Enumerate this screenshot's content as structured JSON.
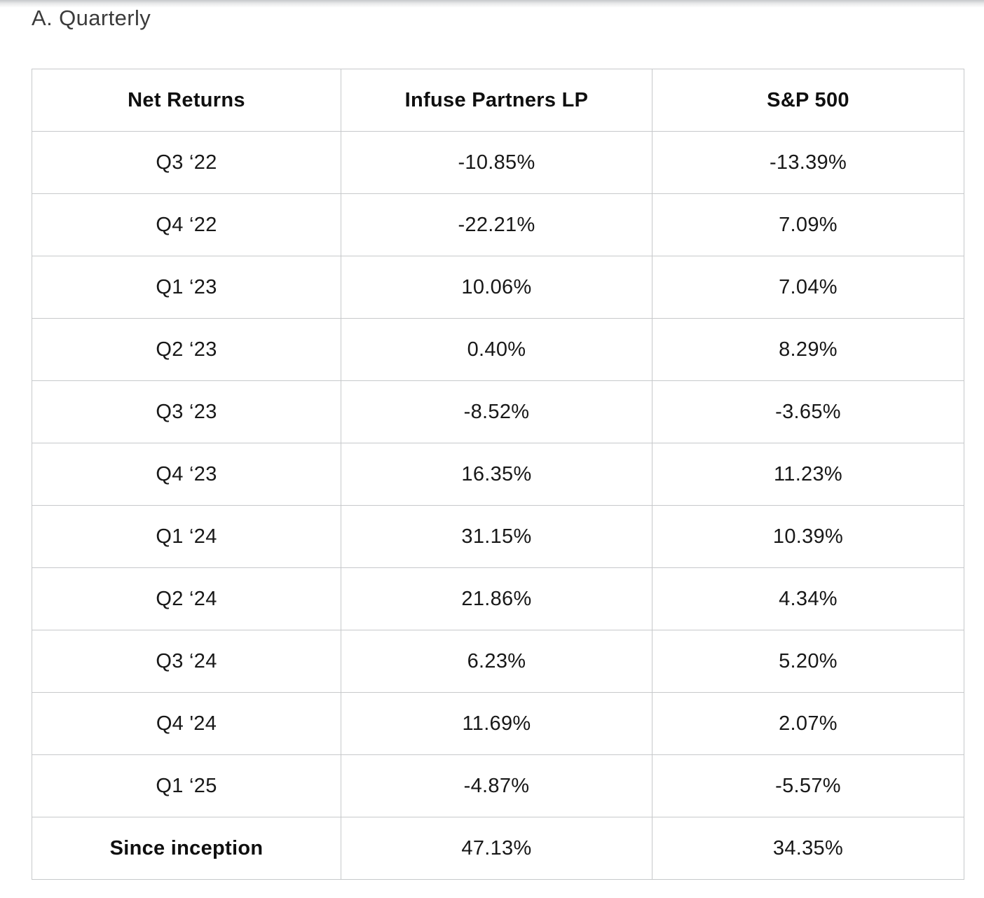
{
  "page": {
    "title": "A. Quarterly"
  },
  "table": {
    "columns": [
      "Net Returns",
      "Infuse Partners LP",
      "S&P 500"
    ],
    "rows": [
      {
        "label": "Q3 ‘22",
        "infuse": "-10.85%",
        "sp500": "-13.39%",
        "emphasis": false
      },
      {
        "label": "Q4 ‘22",
        "infuse": "-22.21%",
        "sp500": "7.09%",
        "emphasis": false
      },
      {
        "label": "Q1 ‘23",
        "infuse": "10.06%",
        "sp500": "7.04%",
        "emphasis": false
      },
      {
        "label": "Q2 ‘23",
        "infuse": "0.40%",
        "sp500": "8.29%",
        "emphasis": false
      },
      {
        "label": "Q3 ‘23",
        "infuse": "-8.52%",
        "sp500": "-3.65%",
        "emphasis": false
      },
      {
        "label": "Q4 ‘23",
        "infuse": "16.35%",
        "sp500": "11.23%",
        "emphasis": false
      },
      {
        "label": "Q1 ‘24",
        "infuse": "31.15%",
        "sp500": "10.39%",
        "emphasis": false
      },
      {
        "label": "Q2 ‘24",
        "infuse": "21.86%",
        "sp500": "4.34%",
        "emphasis": false
      },
      {
        "label": "Q3 ‘24",
        "infuse": "6.23%",
        "sp500": "5.20%",
        "emphasis": false
      },
      {
        "label": "Q4 '24",
        "infuse": "11.69%",
        "sp500": "2.07%",
        "emphasis": false
      },
      {
        "label": "Q1 ‘25",
        "infuse": "-4.87%",
        "sp500": "-5.57%",
        "emphasis": false
      },
      {
        "label": "Since inception",
        "infuse": "47.13%",
        "sp500": "34.35%",
        "emphasis": true
      }
    ]
  },
  "colors": {
    "border": "#c7c9cb",
    "text": "#181818",
    "title_text": "#3b3b3b",
    "top_fade": "#c6c8cb",
    "background": "#ffffff"
  },
  "chart_data": {
    "type": "table",
    "title": "A. Quarterly",
    "columns": [
      "Net Returns",
      "Infuse Partners LP",
      "S&P 500"
    ],
    "rows": [
      [
        "Q3 '22",
        -10.85,
        -13.39
      ],
      [
        "Q4 '22",
        -22.21,
        7.09
      ],
      [
        "Q1 '23",
        10.06,
        7.04
      ],
      [
        "Q2 '23",
        0.4,
        8.29
      ],
      [
        "Q3 '23",
        -8.52,
        -3.65
      ],
      [
        "Q4 '23",
        16.35,
        11.23
      ],
      [
        "Q1 '24",
        31.15,
        10.39
      ],
      [
        "Q2 '24",
        21.86,
        4.34
      ],
      [
        "Q3 '24",
        6.23,
        5.2
      ],
      [
        "Q4 '24",
        11.69,
        2.07
      ],
      [
        "Q1 '25",
        -4.87,
        -5.57
      ],
      [
        "Since inception",
        47.13,
        34.35
      ]
    ],
    "units": "percent",
    "notes": "Quarterly net returns table; values shown with % suffix in UI"
  }
}
